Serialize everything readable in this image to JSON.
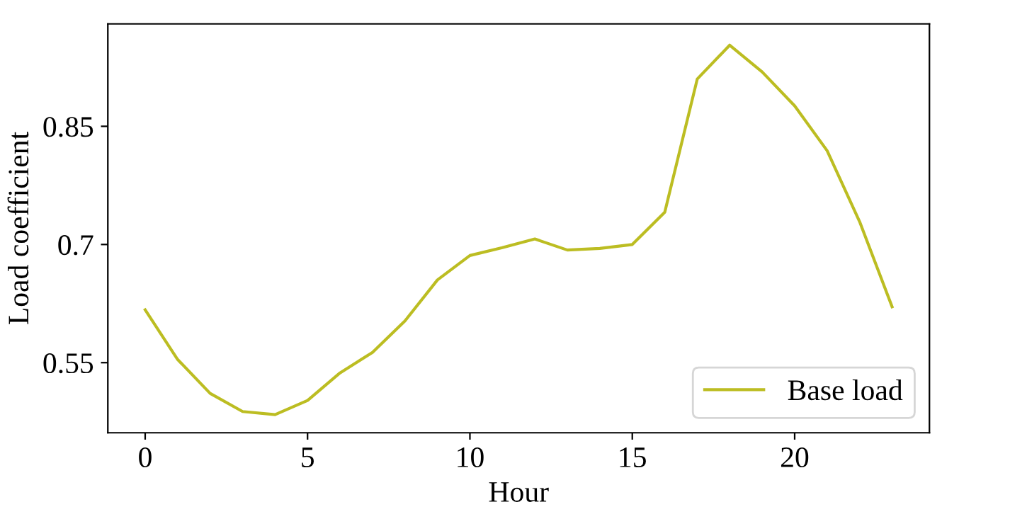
{
  "chart_data": {
    "type": "line",
    "xlabel": "Hour",
    "ylabel": "Load coefficient",
    "x": [
      0,
      1,
      2,
      3,
      4,
      5,
      6,
      7,
      8,
      9,
      10,
      11,
      12,
      13,
      14,
      15,
      16,
      17,
      18,
      19,
      20,
      21,
      22,
      23
    ],
    "series": [
      {
        "name": "Base load",
        "color": "#bcbd22",
        "values": [
          0.617,
          0.554,
          0.511,
          0.488,
          0.484,
          0.502,
          0.537,
          0.563,
          0.603,
          0.655,
          0.686,
          0.696,
          0.707,
          0.693,
          0.695,
          0.7,
          0.741,
          0.91,
          0.953,
          0.919,
          0.876,
          0.819,
          0.729,
          0.621
        ]
      }
    ],
    "xlim": [
      -1.15,
      24.15
    ],
    "ylim": [
      0.461,
      0.98
    ],
    "xticks": [
      0,
      5,
      10,
      15,
      20
    ],
    "yticks": [
      0.55,
      0.7,
      0.85
    ],
    "legend": "bottom right",
    "grid": false
  }
}
